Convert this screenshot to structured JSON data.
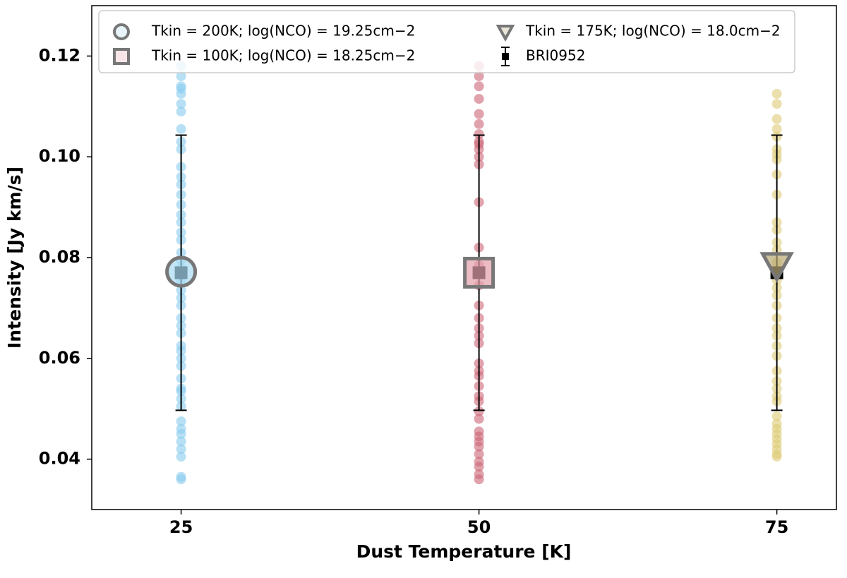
{
  "chart_data": {
    "type": "scatter",
    "xlabel": "Dust Temperature [K]",
    "ylabel": "Intensity [Jy km/s]",
    "xlim": [
      17.5,
      80
    ],
    "ylim": [
      0.03,
      0.13
    ],
    "xticks": [
      25,
      50,
      75
    ],
    "yticks": [
      0.04,
      0.06,
      0.08,
      {
        "value": 0.1,
        "label": "0.10"
      },
      0.12
    ],
    "legend": "upper left",
    "series": [
      {
        "color": "#88ccee",
        "alpha": 0.6,
        "marker": "circle",
        "x": [
          25,
          25,
          25,
          25,
          25,
          25,
          25,
          25,
          25,
          25,
          25,
          25,
          25,
          25,
          25,
          25,
          25,
          25,
          25,
          25,
          25,
          25,
          25,
          25,
          25,
          25,
          25,
          25,
          25,
          25,
          25,
          25,
          25,
          25,
          25,
          25,
          25,
          25,
          25,
          25,
          25,
          25,
          25,
          25,
          25,
          25,
          25
        ],
        "values": [
          0.036,
          0.0365,
          0.0405,
          0.042,
          0.0435,
          0.045,
          0.046,
          0.0475,
          0.0505,
          0.052,
          0.0535,
          0.054,
          0.056,
          0.0585,
          0.06,
          0.0615,
          0.0625,
          0.065,
          0.0665,
          0.068,
          0.0705,
          0.072,
          0.0735,
          0.075,
          0.0765,
          0.078,
          0.0795,
          0.081,
          0.0835,
          0.085,
          0.087,
          0.0885,
          0.0905,
          0.0925,
          0.0945,
          0.096,
          0.098,
          0.1015,
          0.103,
          0.1055,
          0.109,
          0.1105,
          0.1125,
          0.1135,
          0.114,
          0.116,
          0.118
        ]
      },
      {
        "color": "#cc6677",
        "alpha": 0.6,
        "marker": "circle",
        "x": [
          50,
          50,
          50,
          50,
          50,
          50,
          50,
          50,
          50,
          50,
          50,
          50,
          50,
          50,
          50,
          50,
          50,
          50,
          50,
          50,
          50,
          50,
          50,
          50,
          50,
          50,
          50,
          50,
          50,
          50,
          50,
          50,
          50,
          50,
          50,
          50,
          50,
          50
        ],
        "values": [
          0.036,
          0.037,
          0.0385,
          0.0395,
          0.041,
          0.0425,
          0.0435,
          0.0445,
          0.0455,
          0.048,
          0.0495,
          0.0515,
          0.0525,
          0.0545,
          0.0565,
          0.0575,
          0.059,
          0.063,
          0.0645,
          0.066,
          0.068,
          0.0705,
          0.0745,
          0.0785,
          0.082,
          0.091,
          0.0985,
          0.1,
          0.1015,
          0.1025,
          0.103,
          0.1045,
          0.1065,
          0.1085,
          0.1115,
          0.114,
          0.116,
          0.118
        ]
      },
      {
        "color": "#ddcc77",
        "alpha": 0.6,
        "marker": "circle",
        "x": [
          75,
          75,
          75,
          75,
          75,
          75,
          75,
          75,
          75,
          75,
          75,
          75,
          75,
          75,
          75,
          75,
          75,
          75,
          75,
          75,
          75,
          75,
          75,
          75,
          75,
          75,
          75,
          75,
          75,
          75,
          75,
          75,
          75,
          75,
          75,
          75,
          75,
          75,
          75
        ],
        "values": [
          0.0405,
          0.041,
          0.042,
          0.043,
          0.044,
          0.045,
          0.046,
          0.047,
          0.0485,
          0.0515,
          0.0525,
          0.054,
          0.0555,
          0.0575,
          0.0605,
          0.0625,
          0.0645,
          0.066,
          0.068,
          0.0705,
          0.0725,
          0.074,
          0.0755,
          0.077,
          0.079,
          0.0815,
          0.083,
          0.0855,
          0.087,
          0.0925,
          0.0965,
          0.0995,
          0.1005,
          0.1015,
          0.104,
          0.1055,
          0.1075,
          0.1105,
          0.1125
        ]
      },
      {
        "name": "Tkin = 200K; log(NCO) = 19.25cm−2",
        "marker": "circle",
        "color": "#aadcf2",
        "edgecolor": "#777777",
        "alpha": 0.7,
        "x": [
          25
        ],
        "values": [
          0.0772
        ]
      },
      {
        "name": "Tkin = 100K; log(NCO) = 18.25cm−2",
        "marker": "square",
        "color": "#e2a0aa",
        "edgecolor": "#777777",
        "alpha": 0.7,
        "x": [
          50
        ],
        "values": [
          0.077
        ]
      },
      {
        "name": "Tkin = 175K; log(NCO) = 18.0cm−2",
        "marker": "triangle-down",
        "color": "#b8a872",
        "edgecolor": "#777777",
        "alpha": 0.7,
        "x": [
          75
        ],
        "values": [
          0.0785
        ]
      },
      {
        "name": "BRI0952",
        "marker": "errorbar",
        "color": "#000000",
        "x": [
          25,
          50,
          75
        ],
        "values": [
          0.077,
          0.077,
          0.077
        ],
        "errors": [
          0.0273,
          0.0273,
          0.0273
        ]
      }
    ]
  }
}
